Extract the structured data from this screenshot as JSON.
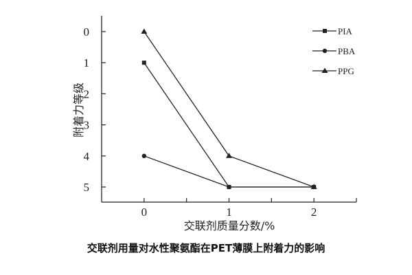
{
  "chart_data": {
    "type": "line",
    "title": "交联剂用量对水性聚氨酯在PET薄膜上附着力的影响",
    "xlabel": "交联剂质量分数/%",
    "ylabel": "附着力等级",
    "x": [
      0,
      1,
      2
    ],
    "xticks": [
      "0",
      "1",
      "2"
    ],
    "yticks": [
      "0",
      "1",
      "2",
      "3",
      "4",
      "5"
    ],
    "xlim": [
      -0.5,
      2.5
    ],
    "ylim": [
      0,
      5
    ],
    "y_inverted": true,
    "grid": false,
    "legend_position": "top-right",
    "series": [
      {
        "name": "PIA",
        "marker": "square",
        "values": [
          1,
          5,
          5
        ]
      },
      {
        "name": "PBA",
        "marker": "circle",
        "values": [
          4,
          5,
          5
        ]
      },
      {
        "name": "PPG",
        "marker": "triangle",
        "values": [
          0,
          4,
          5
        ]
      }
    ],
    "line_color": "#222222"
  }
}
